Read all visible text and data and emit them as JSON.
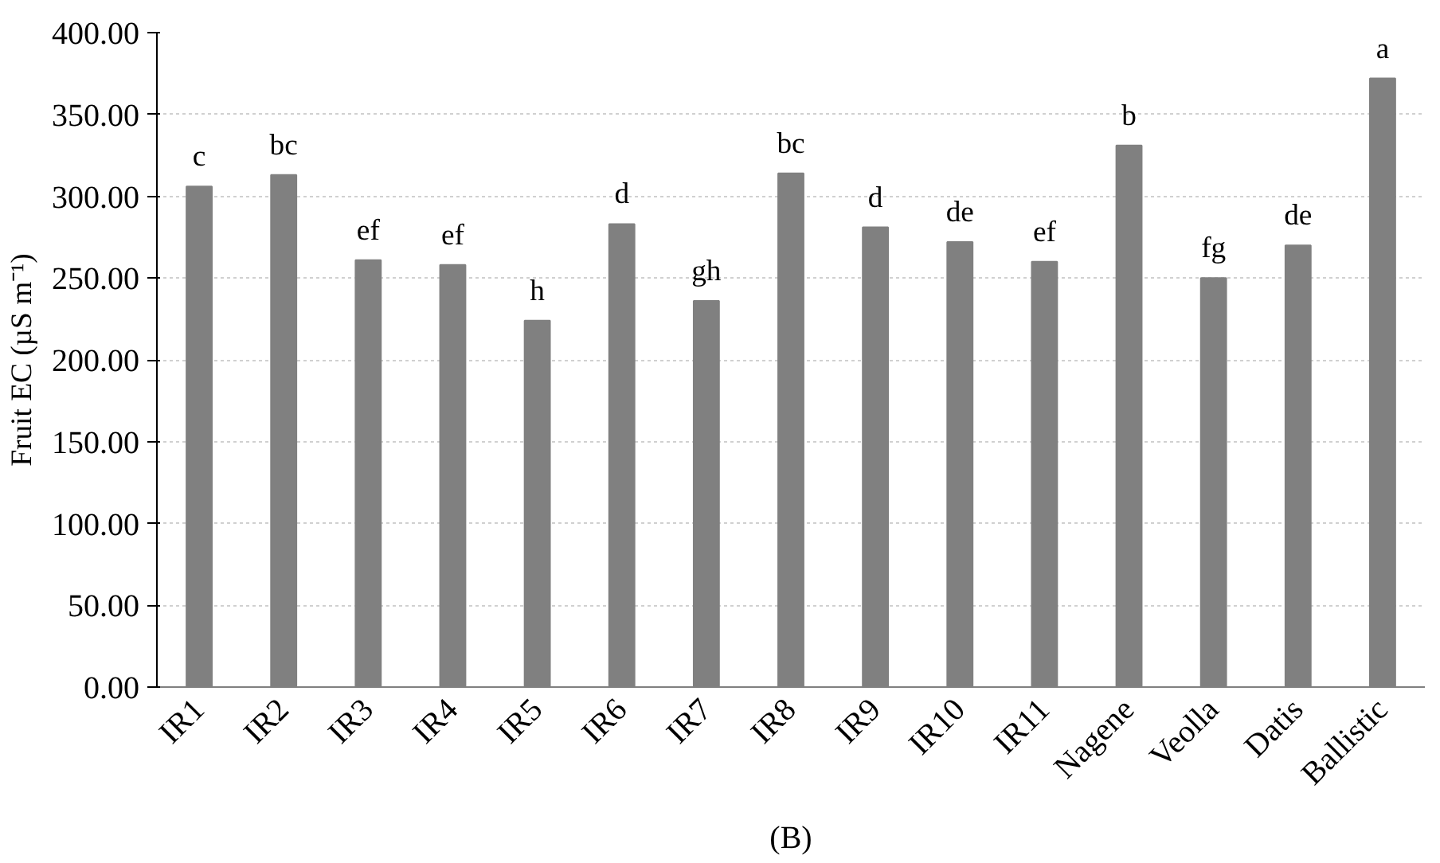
{
  "chart_data": {
    "type": "bar",
    "ylabel": "Fruit EC (µS m⁻¹)",
    "categories": [
      "IR1",
      "IR2",
      "IR3",
      "IR4",
      "IR5",
      "IR6",
      "IR7",
      "IR8",
      "IR9",
      "IR10",
      "IR11",
      "Nagene",
      "Veolla",
      "Datis",
      "Ballistic"
    ],
    "values": [
      306,
      313,
      261,
      258,
      224,
      283,
      236,
      314,
      281,
      272,
      260,
      331,
      250,
      270,
      372
    ],
    "color": "#808080",
    "ylim": [
      0,
      400
    ],
    "yticks": [
      {
        "value": 0,
        "label": "0.00"
      },
      {
        "value": 50,
        "label": "50.00"
      },
      {
        "value": 100,
        "label": "100.00"
      },
      {
        "value": 150,
        "label": "150.00"
      },
      {
        "value": 200,
        "label": "200.00"
      },
      {
        "value": 250,
        "label": "250.00"
      },
      {
        "value": 300,
        "label": "300.00"
      },
      {
        "value": 350,
        "label": "350.00"
      },
      {
        "value": 400,
        "label": "400.00"
      }
    ],
    "grid": "y",
    "annotations": [
      {
        "text": "c",
        "x": "IR1",
        "y": 306
      },
      {
        "text": "bc",
        "x": "IR2",
        "y": 313
      },
      {
        "text": "ef",
        "x": "IR3",
        "y": 261
      },
      {
        "text": "ef",
        "x": "IR4",
        "y": 258
      },
      {
        "text": "h",
        "x": "IR5",
        "y": 224
      },
      {
        "text": "d",
        "x": "IR6",
        "y": 283
      },
      {
        "text": "gh",
        "x": "IR7",
        "y": 236
      },
      {
        "text": "bc",
        "x": "IR8",
        "y": 314
      },
      {
        "text": "d",
        "x": "IR9",
        "y": 281
      },
      {
        "text": "de",
        "x": "IR10",
        "y": 272
      },
      {
        "text": "ef",
        "x": "IR11",
        "y": 260
      },
      {
        "text": "b",
        "x": "Nagene",
        "y": 331
      },
      {
        "text": "fg",
        "x": "Veolla",
        "y": 250
      },
      {
        "text": "de",
        "x": "Datis",
        "y": 270
      },
      {
        "text": "a",
        "x": "Ballistic",
        "y": 372
      },
      "(B)"
    ]
  }
}
